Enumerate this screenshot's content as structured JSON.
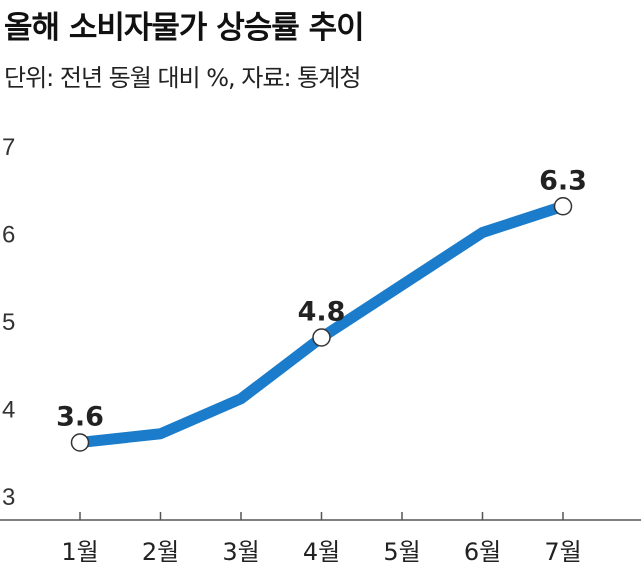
{
  "title": "올해 소비자물가 상승률 추이",
  "subtitle": "단위: 전년 동월 대비 %, 자료: 통계청",
  "chart_data": {
    "type": "line",
    "title": "올해 소비자물가 상승률 추이",
    "subtitle": "단위: 전년 동월 대비 %, 자료: 통계청",
    "categories": [
      "1월",
      "2월",
      "3월",
      "4월",
      "5월",
      "6월",
      "7월"
    ],
    "series": [
      {
        "name": "소비자물가 상승률",
        "values": [
          3.6,
          3.7,
          4.1,
          4.8,
          5.4,
          6.0,
          6.3
        ]
      }
    ],
    "labeled_points": [
      {
        "index": 0,
        "label": "3.6"
      },
      {
        "index": 3,
        "label": "4.8"
      },
      {
        "index": 6,
        "label": "6.3"
      }
    ],
    "yticks": [
      "3",
      "4",
      "5",
      "6",
      "7"
    ],
    "ylim": [
      3,
      7
    ],
    "xlabel": "",
    "ylabel": "",
    "grid": false,
    "line_color": "#1a7ccb"
  }
}
